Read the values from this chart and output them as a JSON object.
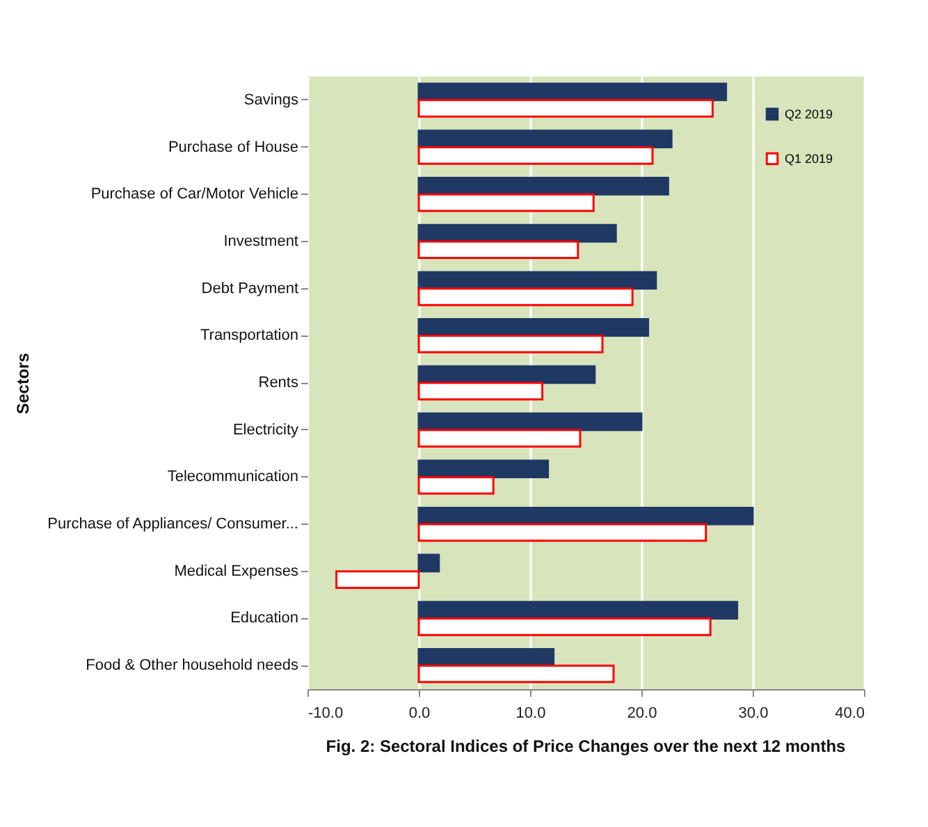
{
  "chart_data": {
    "type": "bar",
    "orientation": "horizontal",
    "title": "Fig. 2: Sectoral  Indices of Price Changes over the next 12 months",
    "ylabel": "Sectors",
    "categories": [
      "Savings",
      "Purchase of House",
      "Purchase of Car/Motor Vehicle",
      "Investment",
      "Debt Payment",
      "Transportation",
      "Rents",
      "Electricity",
      "Telecommunication",
      "Purchase of Appliances/ Consumer...",
      "Medical Expenses",
      "Education",
      "Food & Other household needs"
    ],
    "series": [
      {
        "name": "Q2 2019",
        "color": "#1f3864",
        "values": [
          27.6,
          22.7,
          22.4,
          17.7,
          21.3,
          20.6,
          15.8,
          20.0,
          11.6,
          30.0,
          1.8,
          28.6,
          12.1
        ]
      },
      {
        "name": "Q1 2019",
        "color": "#ff0000",
        "values": [
          26.4,
          21.0,
          15.7,
          14.3,
          19.2,
          16.5,
          11.1,
          14.5,
          6.7,
          25.8,
          -7.4,
          26.2,
          17.5
        ]
      }
    ],
    "xlim": [
      -10,
      40
    ],
    "xticks": [
      {
        "value": -10,
        "label": "-10.0"
      },
      {
        "value": 0,
        "label": "0.0"
      },
      {
        "value": 10,
        "label": "10.0"
      },
      {
        "value": 20,
        "label": "20.0"
      },
      {
        "value": 30,
        "label": "30.0"
      },
      {
        "value": 40,
        "label": "40.0"
      }
    ],
    "grid": "x",
    "legend": "top right"
  }
}
